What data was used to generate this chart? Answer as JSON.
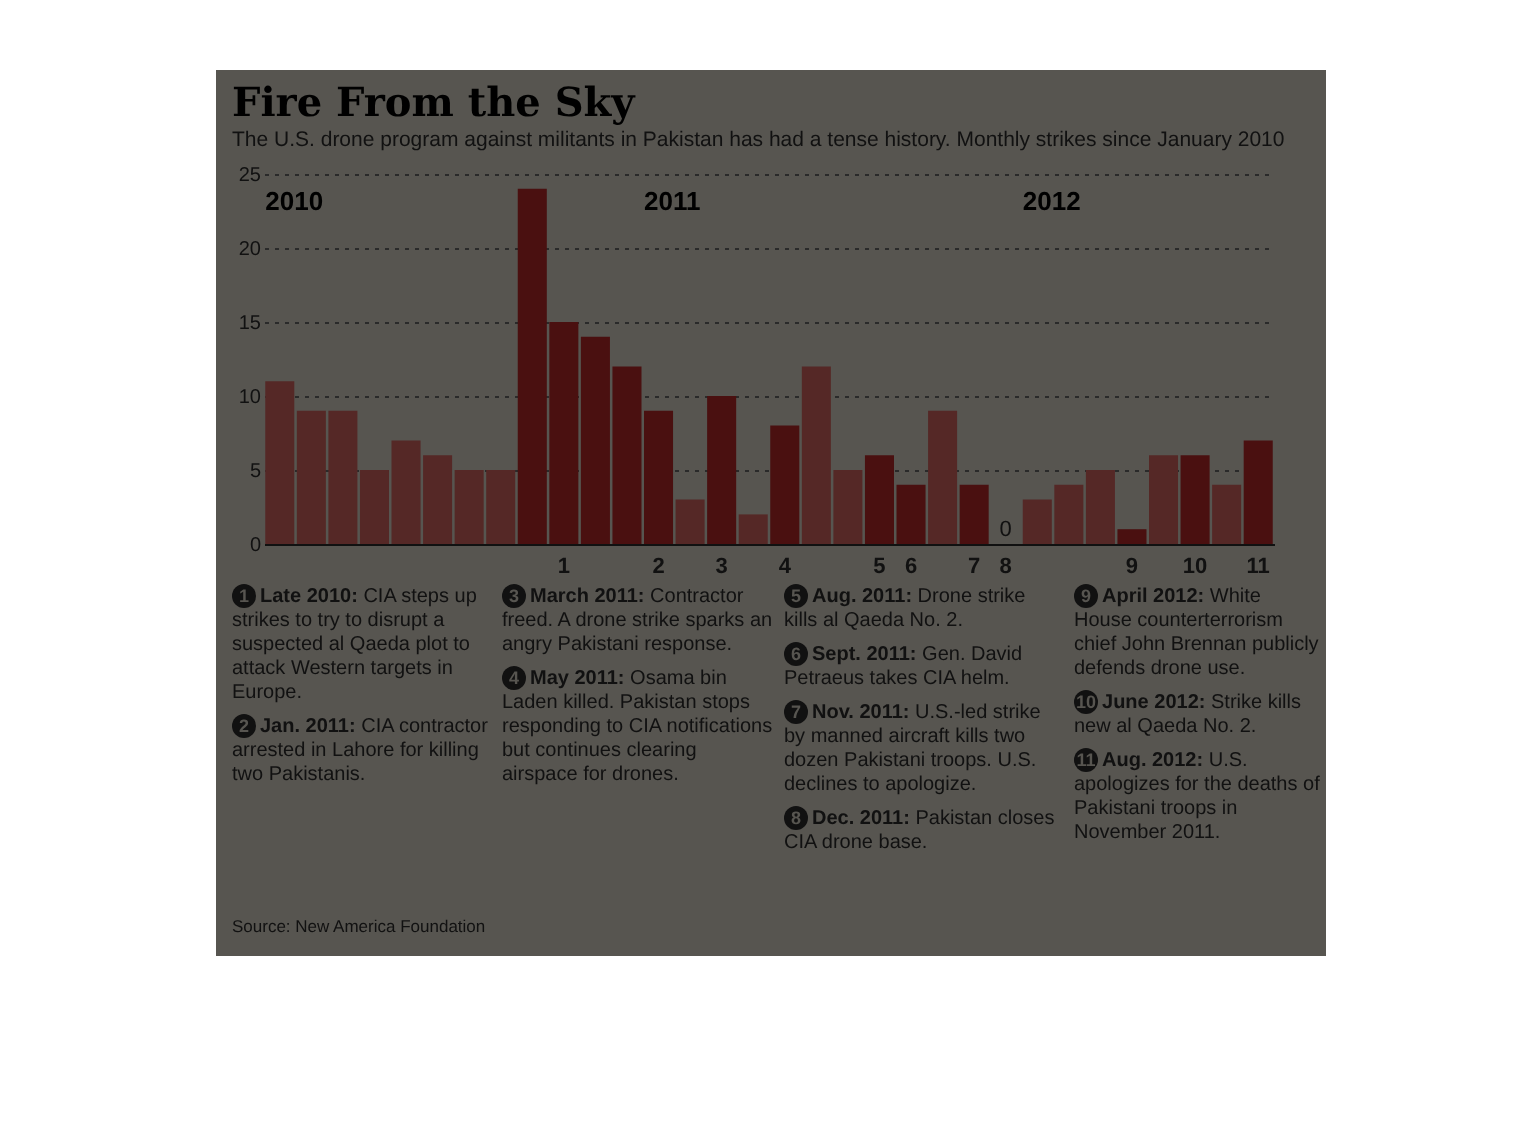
{
  "chart_data": {
    "type": "bar",
    "title": "Fire From the Sky",
    "subtitle": "The U.S. drone program against militants in Pakistan has had a tense history. Monthly strikes since January 2010",
    "categories": [
      null,
      null,
      null,
      null,
      null,
      null,
      null,
      null,
      null,
      "1",
      null,
      null,
      "2",
      null,
      "3",
      null,
      "4",
      null,
      null,
      "5",
      "6",
      null,
      "7",
      "8",
      null,
      null,
      null,
      "9",
      null,
      "10",
      null,
      "11"
    ],
    "values": [
      11,
      9,
      9,
      5,
      7,
      6,
      5,
      5,
      24,
      15,
      14,
      12,
      9,
      3,
      10,
      2,
      8,
      12,
      5,
      6,
      4,
      9,
      4,
      0,
      3,
      4,
      5,
      1,
      6,
      6,
      4,
      7
    ],
    "colors": [
      "#552826",
      "#552826",
      "#552826",
      "#552826",
      "#552826",
      "#552826",
      "#552826",
      "#552826",
      "#4a1010",
      "#4a1010",
      "#4a1010",
      "#4a1010",
      "#4a1010",
      "#552826",
      "#4a1010",
      "#552826",
      "#4a1010",
      "#552826",
      "#552826",
      "#4a1010",
      "#4a1010",
      "#552826",
      "#4a1010",
      "#4a1010",
      "#552826",
      "#552826",
      "#552826",
      "#4a1010",
      "#552826",
      "#4a1010",
      "#552826",
      "#4a1010"
    ],
    "value_labels": [
      null,
      null,
      null,
      null,
      null,
      null,
      null,
      null,
      null,
      null,
      null,
      null,
      null,
      null,
      null,
      null,
      null,
      null,
      null,
      null,
      null,
      null,
      null,
      "0",
      null,
      null,
      null,
      null,
      null,
      null,
      null,
      null
    ],
    "ylim": [
      0,
      25
    ],
    "yticks": [
      0,
      5,
      10,
      15,
      20,
      25
    ],
    "grid": "y",
    "annotations": [
      "2010",
      "2011",
      "2012",
      "1 Late 2010: CIA steps up strikes to try to disrupt a suspected al Qaeda plot to attack Western targets in Europe.",
      "2 Jan. 2011: CIA contractor arrested in Lahore for killing two Pakistanis.",
      "3 March 2011: Contractor freed. A drone strike sparks an angry Pakistani response.",
      "4 May 2011: Osama bin Laden killed. Pakistan stops responding to CIA notifications but continues clearing airspace for drones.",
      "5 Aug. 2011: Drone strike kills al Qaeda No. 2.",
      "6 Sept. 2011: Gen. David Petraeus takes CIA helm.",
      "7 Nov. 2011: U.S.-led strike by manned aircraft kills two dozen Pakistani troops. U.S. declines to apologize.",
      "8 Dec. 2011: Pakistan closes CIA drone base.",
      "9 April 2012: White House counterterrorism chief John Brennan publicly defends drone use.",
      "10 June 2012: Strike kills new al Qaeda No. 2.",
      "11 Aug. 2012: U.S. apologizes for the deaths of Pakistani troops in November 2011.",
      "Source: New America Foundation"
    ]
  }
}
